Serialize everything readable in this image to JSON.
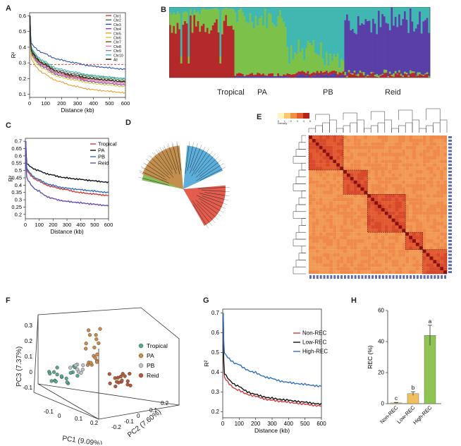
{
  "panels": {
    "A": "A",
    "B": "B",
    "C": "C",
    "D": "D",
    "E": "E",
    "F": "F",
    "G": "G",
    "H": "H"
  },
  "colors": {
    "tropical": "#e04a3a",
    "pa": "#78b94a",
    "pb": "#4aa6d8",
    "reid": "#6a4bb0",
    "admixRed": "#b42a2a",
    "admixGreen": "#7cc24a",
    "admixTeal": "#40b7b0",
    "admixPurple": "#5a3fa8",
    "nonRec": "#e03a2a",
    "lowRec": "#222222",
    "highRec": "#2e6fbf"
  },
  "chart_data": [
    {
      "id": "A",
      "type": "line",
      "xlabel": "Distance (kb)",
      "ylabel": "R²",
      "xlim": [
        0,
        600
      ],
      "ylim": [
        0.08,
        0.62
      ],
      "xticks": [
        0,
        100,
        200,
        300,
        400,
        500,
        600
      ],
      "yticks": [
        0.1,
        0.2,
        0.3,
        0.4,
        0.5,
        0.6
      ],
      "hline": 0.29,
      "legend_position": "top-right",
      "series": [
        {
          "name": "Chr1",
          "color": "#d23a3a",
          "values": [
            0.4,
            0.29,
            0.24,
            0.21,
            0.19,
            0.18,
            0.17
          ]
        },
        {
          "name": "Chr2",
          "color": "#3a7a3a",
          "values": [
            0.41,
            0.3,
            0.25,
            0.23,
            0.21,
            0.2,
            0.19
          ]
        },
        {
          "name": "Chr3",
          "color": "#2e4fa8",
          "values": [
            0.44,
            0.36,
            0.32,
            0.3,
            0.28,
            0.27,
            0.26
          ]
        },
        {
          "name": "Chr4",
          "color": "#8a3aa8",
          "values": [
            0.38,
            0.27,
            0.22,
            0.2,
            0.18,
            0.17,
            0.16
          ]
        },
        {
          "name": "Chr5",
          "color": "#e8a030",
          "values": [
            0.35,
            0.23,
            0.18,
            0.15,
            0.13,
            0.12,
            0.11
          ]
        },
        {
          "name": "Chr6",
          "color": "#c8c83a",
          "values": [
            0.37,
            0.26,
            0.21,
            0.19,
            0.17,
            0.16,
            0.15
          ]
        },
        {
          "name": "Chr7",
          "color": "#7a4a2a",
          "values": [
            0.39,
            0.28,
            0.23,
            0.21,
            0.2,
            0.19,
            0.18
          ]
        },
        {
          "name": "Chr8",
          "color": "#e87ab0",
          "values": [
            0.4,
            0.28,
            0.23,
            0.2,
            0.19,
            0.18,
            0.17
          ]
        },
        {
          "name": "Chr9",
          "color": "#888888",
          "values": [
            0.39,
            0.29,
            0.25,
            0.23,
            0.22,
            0.21,
            0.2
          ]
        },
        {
          "name": "Chr10",
          "color": "#3ab8b8",
          "values": [
            0.42,
            0.31,
            0.26,
            0.24,
            0.22,
            0.21,
            0.2
          ]
        },
        {
          "name": "All",
          "color": "#111111",
          "values": [
            0.4,
            0.29,
            0.24,
            0.22,
            0.2,
            0.19,
            0.18
          ]
        }
      ]
    },
    {
      "id": "B",
      "type": "bar",
      "group_labels": [
        "Tropical",
        "PA",
        "PB",
        "Reid"
      ]
    },
    {
      "id": "C",
      "type": "line",
      "xlabel": "Distance (kb)",
      "ylabel": "R²",
      "xlim": [
        0,
        600
      ],
      "ylim": [
        0.17,
        0.72
      ],
      "xticks": [
        0,
        100,
        200,
        300,
        400,
        500,
        600
      ],
      "yticks": [
        0.2,
        0.25,
        0.3,
        0.35,
        0.4,
        0.45,
        0.5,
        0.55,
        0.6,
        0.65,
        0.7
      ],
      "legend_position": "top-right",
      "series": [
        {
          "name": "Tropical",
          "color": "#d23a3a",
          "values": [
            0.52,
            0.43,
            0.39,
            0.37,
            0.35,
            0.34,
            0.33
          ]
        },
        {
          "name": "PA",
          "color": "#111111",
          "values": [
            0.56,
            0.5,
            0.47,
            0.45,
            0.44,
            0.43,
            0.42
          ]
        },
        {
          "name": "PB",
          "color": "#2e6fbf",
          "values": [
            0.53,
            0.44,
            0.4,
            0.38,
            0.37,
            0.36,
            0.35
          ]
        },
        {
          "name": "Reid",
          "color": "#6a4bb0",
          "values": [
            0.47,
            0.36,
            0.31,
            0.29,
            0.28,
            0.27,
            0.26
          ]
        }
      ]
    },
    {
      "id": "D",
      "type": "tree"
    },
    {
      "id": "E",
      "type": "heatmap",
      "legend": "Density",
      "scale_ticks": [
        "0",
        "1",
        "2",
        "3",
        "4",
        "5"
      ]
    },
    {
      "id": "F",
      "type": "scatter",
      "xlabel": "PC1 (9.09%)",
      "ylabel": "PC3 (7.37%)",
      "zlabel": "PC2 (7.60%)",
      "legend_position": "right",
      "series": [
        {
          "name": "Tropical",
          "color": "#5aa88a"
        },
        {
          "name": "PA",
          "color": "#c98a4a"
        },
        {
          "name": "PB",
          "color": "#b9c3c9"
        },
        {
          "name": "Reid",
          "color": "#b45a3a"
        }
      ]
    },
    {
      "id": "G",
      "type": "line",
      "xlabel": "Distance (kb)",
      "ylabel": "R²",
      "xlim": [
        0,
        600
      ],
      "ylim": [
        0.17,
        0.72
      ],
      "xticks": [
        0,
        100,
        200,
        300,
        400,
        500,
        600
      ],
      "yticks": [
        0.2,
        0.3,
        0.4,
        0.5,
        0.6,
        0.7
      ],
      "legend_position": "right",
      "series": [
        {
          "name": "Non-REC",
          "color": "#d23a3a",
          "values": [
            0.39,
            0.31,
            0.28,
            0.26,
            0.25,
            0.24,
            0.23
          ]
        },
        {
          "name": "Low-REC",
          "color": "#111111",
          "values": [
            0.41,
            0.33,
            0.29,
            0.27,
            0.26,
            0.25,
            0.24
          ]
        },
        {
          "name": "High-REC",
          "color": "#2e6fbf",
          "values": [
            0.51,
            0.44,
            0.4,
            0.37,
            0.35,
            0.34,
            0.33
          ]
        }
      ]
    },
    {
      "id": "H",
      "type": "bar",
      "ylabel": "REC (%)",
      "ylim": [
        0,
        60
      ],
      "yticks": [
        0,
        20,
        40,
        60
      ],
      "categories": [
        "Non-REC",
        "Low-REC",
        "High-REC"
      ],
      "values": [
        0.5,
        6.5,
        44
      ],
      "errors": [
        0.3,
        1.2,
        6.5
      ],
      "letters": [
        "c",
        "b",
        "a"
      ],
      "colors": [
        "#f0c060",
        "#f0c060",
        "#8fc352"
      ]
    }
  ]
}
